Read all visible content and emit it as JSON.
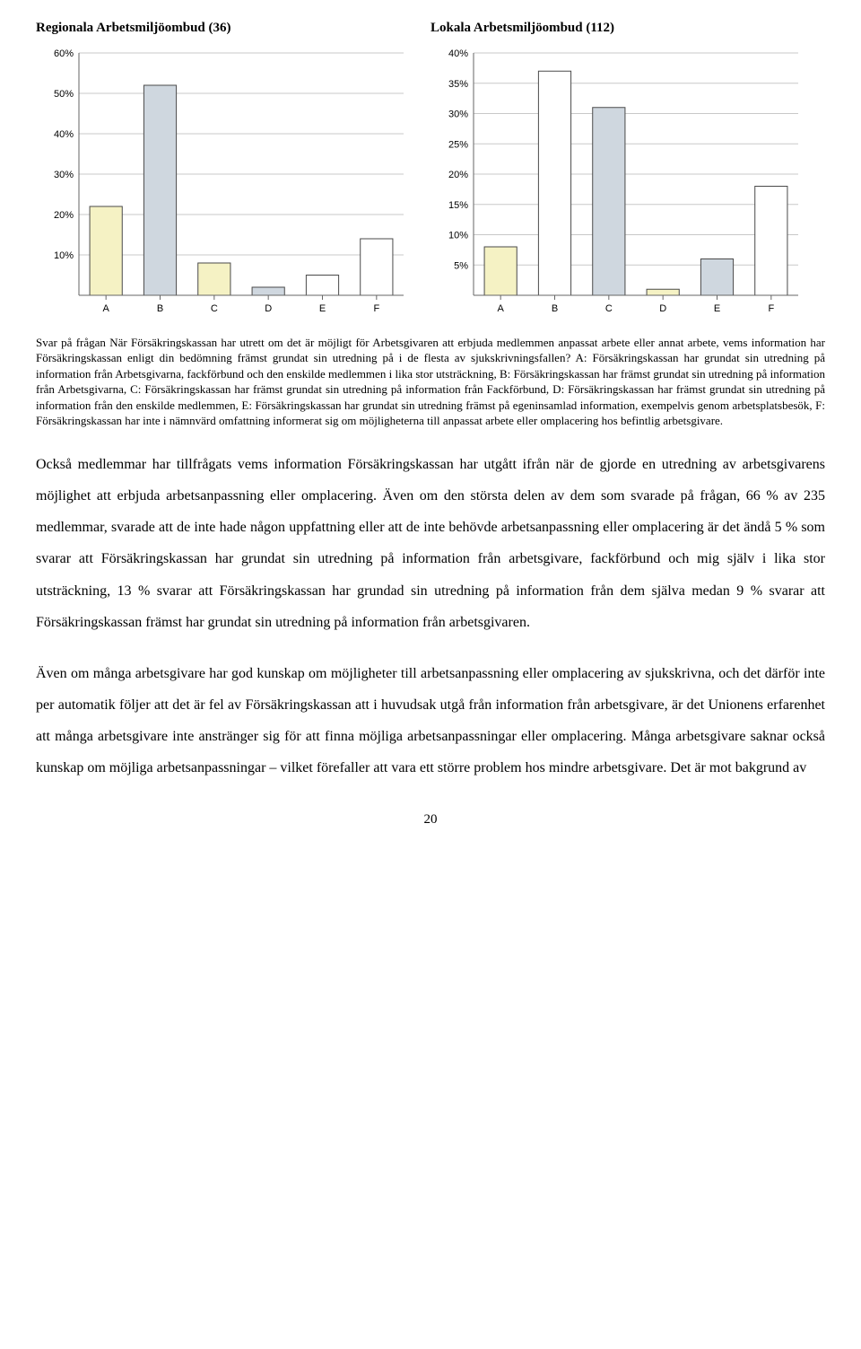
{
  "titles": {
    "left": "Regionala Arbetsmiljöombud (36)",
    "right": "Lokala Arbetsmiljöombud (112)"
  },
  "chart_left": {
    "type": "bar",
    "categories": [
      "A",
      "B",
      "C",
      "D",
      "E",
      "F"
    ],
    "values": [
      22,
      52,
      8,
      2,
      5,
      14
    ],
    "ylim": [
      0,
      60
    ],
    "ytick_step": 10,
    "ytick_suffix": "%",
    "bar_colors": [
      "#f5f2c4",
      "#cfd7df",
      "#f5f2c4",
      "#cfd7df",
      "#ffffff",
      "#ffffff"
    ],
    "bar_border": "#4a4a4a",
    "axis_color": "#666666",
    "grid_color": "#c8c8c8",
    "tick_fontsize": 11,
    "axis_fontsize": 11,
    "bar_width": 0.6,
    "background_color": "#ffffff"
  },
  "chart_right": {
    "type": "bar",
    "categories": [
      "A",
      "B",
      "C",
      "D",
      "E",
      "F"
    ],
    "values": [
      8,
      37,
      31,
      1,
      6,
      18
    ],
    "ylim": [
      0,
      40
    ],
    "ytick_step": 5,
    "ytick_suffix": "%",
    "bar_colors": [
      "#f5f2c4",
      "#ffffff",
      "#cfd7df",
      "#f5f2c4",
      "#cfd7df",
      "#ffffff"
    ],
    "bar_border": "#4a4a4a",
    "axis_color": "#666666",
    "grid_color": "#c8c8c8",
    "tick_fontsize": 11,
    "axis_fontsize": 11,
    "bar_width": 0.6,
    "background_color": "#ffffff"
  },
  "caption": "Svar på frågan När Försäkringskassan har utrett om det är möjligt för Arbetsgivaren att erbjuda medlemmen anpassat arbete eller annat arbete, vems information har Försäkringskassan enligt din bedömning främst grundat sin utredning på i de flesta av sjukskrivningsfallen? A: Försäkringskassan har grundat sin utredning på information från Arbetsgivarna, fackförbund och den enskilde medlemmen i lika stor utsträckning, B: Försäkringskassan har främst grundat sin utredning på information från Arbetsgivarna, C: Försäkringskassan har främst grundat sin utredning på information från Fackförbund, D: Försäkringskassan har främst grundat sin utredning på information från den enskilde medlemmen, E: Försäkringskassan har grundat sin utredning främst på egeninsamlad information, exempelvis genom arbetsplatsbesök, F: Försäkringskassan har inte i nämnvärd omfattning informerat sig om möjligheterna till anpassat arbete eller omplacering hos befintlig arbetsgivare.",
  "paragraph1": "Också medlemmar har tillfrågats vems information Försäkringskassan har utgått ifrån när de gjorde en utredning av arbetsgivarens möjlighet att erbjuda arbetsanpassning eller omplacering. Även om den största delen av dem som svarade på frågan, 66 % av 235 medlemmar, svarade att de inte hade någon uppfattning eller att de inte behövde arbetsanpassning eller omplacering är det ändå 5 % som svarar att Försäkringskassan har grundat sin utredning på information från arbetsgivare, fackförbund och mig själv i lika stor utsträckning, 13 % svarar att Försäkringskassan har grundad sin utredning på information från dem själva medan 9 % svarar att Försäkringskassan främst har grundat sin utredning på information från arbetsgivaren.",
  "paragraph2": "Även om många arbetsgivare har god kunskap om möjligheter till arbetsanpassning eller omplacering av sjukskrivna, och det därför inte per automatik följer att det är fel av Försäkringskassan att i huvudsak utgå från information från arbetsgivare, är det Unionens erfarenhet att många arbetsgivare inte anstränger sig för att finna möjliga arbetsanpassningar eller omplacering. Många arbetsgivare saknar också kunskap om möjliga arbetsanpassningar – vilket förefaller att vara ett större problem hos mindre arbetsgivare. Det är mot bakgrund av",
  "page_number": "20"
}
